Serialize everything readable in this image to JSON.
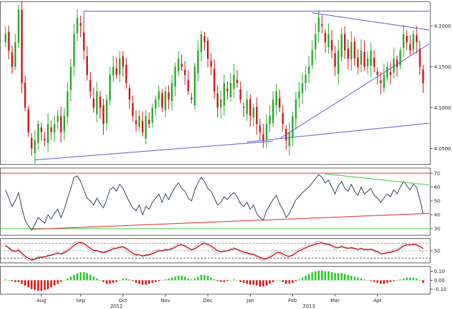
{
  "chart_data": [
    {
      "type": "candlestick",
      "panel": "price",
      "yaxis_side": "right",
      "ylim": [
        4.03,
        4.23
      ],
      "y_ticks": [
        4.05,
        4.1,
        4.15,
        4.2
      ],
      "y_tick_labels": [
        "4.0500",
        "4.1000",
        "4.1500",
        "4.2000"
      ],
      "grid": false,
      "up_color": "#22aa22",
      "down_color": "#cc1111",
      "closes": [
        4.19,
        4.17,
        4.15,
        4.18,
        4.22,
        4.13,
        4.1,
        4.07,
        4.05,
        4.06,
        4.08,
        4.07,
        4.06,
        4.08,
        4.07,
        4.08,
        4.09,
        4.07,
        4.09,
        4.12,
        4.15,
        4.19,
        4.21,
        4.2,
        4.17,
        4.14,
        4.12,
        4.1,
        4.12,
        4.1,
        4.08,
        4.11,
        4.14,
        4.15,
        4.14,
        4.16,
        4.15,
        4.13,
        4.11,
        4.09,
        4.08,
        4.09,
        4.07,
        4.09,
        4.08,
        4.1,
        4.11,
        4.12,
        4.1,
        4.12,
        4.11,
        4.13,
        4.15,
        4.16,
        4.15,
        4.14,
        4.12,
        4.11,
        4.15,
        4.17,
        4.19,
        4.18,
        4.16,
        4.15,
        4.12,
        4.1,
        4.11,
        4.13,
        4.12,
        4.13,
        4.14,
        4.13,
        4.11,
        4.1,
        4.11,
        4.09,
        4.1,
        4.08,
        4.07,
        4.06,
        4.08,
        4.09,
        4.11,
        4.12,
        4.1,
        4.08,
        4.06,
        4.07,
        4.09,
        4.11,
        4.12,
        4.13,
        4.14,
        4.15,
        4.17,
        4.19,
        4.21,
        4.2,
        4.18,
        4.19,
        4.17,
        4.15,
        4.17,
        4.19,
        4.17,
        4.16,
        4.18,
        4.16,
        4.15,
        4.17,
        4.15,
        4.16,
        4.17,
        4.15,
        4.14,
        4.13,
        4.14,
        4.15,
        4.14,
        4.16,
        4.15,
        4.17,
        4.19,
        4.18,
        4.17,
        4.19,
        4.18,
        4.15,
        4.13
      ]
    },
    {
      "type": "line",
      "panel": "rsi",
      "yaxis_side": "right",
      "ylim": [
        25,
        74
      ],
      "y_ticks": [
        30,
        40,
        50,
        60,
        70
      ],
      "y_tick_labels": [
        "30",
        "40",
        "50",
        "60",
        "70"
      ],
      "reference_lines": [
        {
          "value": 70,
          "color": "#dd3333"
        },
        {
          "value": 30,
          "color": "#33cc33"
        }
      ],
      "line_color": "#1a2a4a",
      "values": [
        58,
        52,
        46,
        50,
        56,
        45,
        36,
        32,
        29,
        33,
        38,
        36,
        34,
        40,
        37,
        41,
        44,
        38,
        44,
        52,
        59,
        67,
        68,
        64,
        58,
        52,
        50,
        47,
        52,
        48,
        45,
        51,
        58,
        60,
        57,
        62,
        59,
        54,
        49,
        45,
        43,
        47,
        40,
        46,
        44,
        49,
        52,
        55,
        49,
        55,
        51,
        56,
        60,
        63,
        59,
        57,
        52,
        50,
        58,
        63,
        67,
        64,
        59,
        57,
        52,
        47,
        49,
        53,
        51,
        54,
        56,
        53,
        48,
        46,
        49,
        44,
        47,
        41,
        38,
        36,
        43,
        47,
        51,
        54,
        48,
        44,
        38,
        41,
        46,
        51,
        53,
        56,
        58,
        60,
        63,
        66,
        69,
        67,
        63,
        65,
        60,
        55,
        61,
        64,
        59,
        57,
        62,
        57,
        54,
        60,
        55,
        57,
        59,
        54,
        52,
        49,
        52,
        55,
        53,
        58,
        55,
        60,
        64,
        61,
        58,
        62,
        60,
        51,
        41
      ]
    },
    {
      "type": "line",
      "panel": "stochastic",
      "yaxis_side": "right",
      "y_ticks": [
        50
      ],
      "y_tick_labels": [
        "50"
      ],
      "reference_lines": [
        {
          "value": 80,
          "color": "#dd6666",
          "style": "dashed"
        },
        {
          "value": 50,
          "color": "#999999",
          "style": "dashed"
        },
        {
          "value": 20,
          "color": "#444444",
          "style": "dashed"
        }
      ],
      "series": [
        {
          "color": "#cc1111",
          "values": [
            70,
            62,
            52,
            48,
            52,
            40,
            28,
            20,
            14,
            16,
            22,
            24,
            26,
            30,
            32,
            36,
            40,
            38,
            42,
            50,
            60,
            72,
            80,
            84,
            80,
            70,
            60,
            52,
            50,
            46,
            44,
            46,
            52,
            58,
            60,
            64,
            66,
            60,
            50,
            40,
            34,
            34,
            30,
            32,
            34,
            38,
            44,
            50,
            50,
            54,
            54,
            58,
            64,
            72,
            74,
            70,
            62,
            54,
            58,
            66,
            76,
            80,
            76,
            70,
            60,
            50,
            46,
            48,
            50,
            54,
            58,
            56,
            50,
            44,
            42,
            38,
            36,
            30,
            24,
            18,
            18,
            24,
            32,
            42,
            44,
            38,
            30,
            28,
            32,
            42,
            50,
            56,
            62,
            68,
            72,
            76,
            80,
            82,
            78,
            76,
            72,
            64,
            62,
            66,
            64,
            60,
            62,
            60,
            56,
            58,
            56,
            54,
            56,
            52,
            46,
            40,
            38,
            42,
            44,
            48,
            52,
            60,
            70,
            74,
            74,
            76,
            74,
            68,
            58
          ]
        },
        {
          "color": "#99bbcc",
          "values": [
            76,
            60,
            46,
            46,
            58,
            32,
            18,
            10,
            8,
            18,
            28,
            26,
            24,
            34,
            34,
            42,
            46,
            34,
            48,
            58,
            70,
            84,
            88,
            84,
            72,
            60,
            50,
            42,
            50,
            42,
            40,
            50,
            60,
            66,
            60,
            70,
            66,
            52,
            40,
            32,
            28,
            36,
            24,
            36,
            36,
            46,
            52,
            58,
            46,
            60,
            54,
            64,
            72,
            80,
            76,
            66,
            54,
            48,
            66,
            76,
            88,
            84,
            70,
            62,
            48,
            38,
            42,
            52,
            50,
            58,
            64,
            56,
            42,
            36,
            40,
            32,
            36,
            24,
            16,
            10,
            20,
            32,
            44,
            52,
            40,
            30,
            20,
            26,
            38,
            52,
            58,
            64,
            70,
            76,
            80,
            84,
            88,
            84,
            72,
            78,
            66,
            54,
            64,
            72,
            60,
            58,
            66,
            56,
            50,
            62,
            52,
            56,
            58,
            46,
            40,
            34,
            40,
            48,
            46,
            56,
            58,
            68,
            80,
            76,
            70,
            80,
            74,
            56,
            40
          ]
        }
      ]
    },
    {
      "type": "bar",
      "panel": "histogram",
      "yaxis_side": "right",
      "ylim": [
        -0.16,
        0.16
      ],
      "y_ticks": [
        0.1,
        0.0,
        -0.1
      ],
      "y_tick_labels": [
        "0.10",
        "0.00",
        "-0.10"
      ],
      "up_color": "#22cc22",
      "down_color": "#dd1111",
      "values": [
        0.01,
        0.0,
        -0.01,
        -0.02,
        -0.02,
        -0.04,
        -0.06,
        -0.08,
        -0.1,
        -0.11,
        -0.12,
        -0.12,
        -0.11,
        -0.1,
        -0.08,
        -0.06,
        -0.04,
        -0.02,
        0.0,
        0.02,
        0.04,
        0.06,
        0.08,
        0.09,
        0.09,
        0.08,
        0.06,
        0.04,
        0.02,
        0.0,
        -0.02,
        -0.04,
        -0.04,
        -0.03,
        -0.02,
        0.0,
        0.02,
        0.02,
        0.01,
        -0.01,
        -0.03,
        -0.04,
        -0.05,
        -0.05,
        -0.04,
        -0.03,
        -0.02,
        -0.01,
        0.0,
        0.01,
        0.02,
        0.03,
        0.04,
        0.05,
        0.05,
        0.04,
        0.02,
        0.01,
        0.02,
        0.04,
        0.06,
        0.06,
        0.05,
        0.03,
        0.01,
        -0.01,
        -0.02,
        -0.02,
        -0.01,
        0.0,
        0.01,
        0.0,
        -0.02,
        -0.03,
        -0.04,
        -0.05,
        -0.05,
        -0.06,
        -0.07,
        -0.07,
        -0.06,
        -0.04,
        -0.02,
        0.0,
        0.0,
        -0.02,
        -0.04,
        -0.04,
        -0.03,
        -0.01,
        0.01,
        0.03,
        0.05,
        0.07,
        0.09,
        0.1,
        0.11,
        0.11,
        0.1,
        0.1,
        0.09,
        0.08,
        0.08,
        0.08,
        0.07,
        0.06,
        0.05,
        0.04,
        0.03,
        0.02,
        0.01,
        0.0,
        -0.01,
        -0.02,
        -0.03,
        -0.04,
        -0.04,
        -0.03,
        -0.02,
        -0.01,
        0.0,
        0.01,
        0.02,
        0.03,
        0.03,
        0.03,
        0.02,
        0.0,
        -0.03
      ]
    }
  ],
  "x_axis": {
    "month_labels": [
      {
        "label": "Aug",
        "index": 11
      },
      {
        "label": "Sep",
        "index": 23
      },
      {
        "label": "Oct",
        "index": 36
      },
      {
        "label": "Nov",
        "index": 49
      },
      {
        "label": "Dec",
        "index": 62
      },
      {
        "label": "Jan",
        "index": 75
      },
      {
        "label": "Feb",
        "index": 88
      },
      {
        "label": "Mar",
        "index": 101
      },
      {
        "label": "Apr",
        "index": 114
      }
    ],
    "year_labels": [
      {
        "label": "2012",
        "index": 34
      },
      {
        "label": "2013",
        "index": 93
      }
    ]
  },
  "colors": {
    "trendline": "#5555cc",
    "panel_border": "#666666",
    "rsi_upper_trend": "#33cc33",
    "rsi_lower_trend": "#dd2222",
    "ref_red": "#dd3333",
    "ref_green": "#33cc33"
  }
}
